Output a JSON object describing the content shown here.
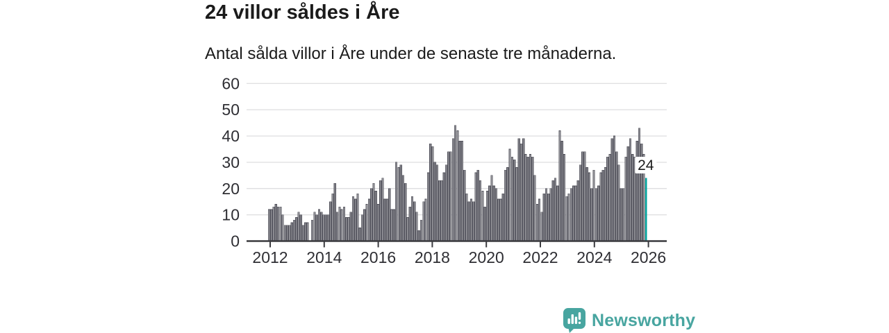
{
  "header": {
    "title": "24 villor såldes i Åre",
    "subtitle": "Antal sålda villor i Åre under de senaste tre månaderna."
  },
  "chart_data": {
    "type": "bar",
    "title": "24 villor såldes i Åre",
    "subtitle": "Antal sålda villor i Åre under de senaste tre månaderna.",
    "x_start_year": 2012,
    "x_interval": "monthly",
    "values": [
      12,
      12,
      13,
      14,
      13,
      13,
      10,
      6,
      6,
      6,
      7,
      8,
      9,
      11,
      10,
      6,
      7,
      7,
      0,
      8,
      11,
      10,
      12,
      11,
      10,
      10,
      10,
      15,
      18,
      22,
      11,
      13,
      12,
      13,
      9,
      9,
      11,
      17,
      16,
      18,
      5,
      10,
      12,
      14,
      16,
      20,
      22,
      19,
      14,
      23,
      24,
      16,
      16,
      20,
      12,
      12,
      30,
      28,
      29,
      25,
      22,
      9,
      13,
      17,
      15,
      11,
      4,
      8,
      15,
      16,
      26,
      37,
      36,
      30,
      29,
      23,
      23,
      26,
      29,
      34,
      34,
      39,
      44,
      42,
      38,
      38,
      27,
      18,
      15,
      16,
      15,
      26,
      27,
      23,
      19,
      13,
      19,
      21,
      25,
      21,
      20,
      16,
      16,
      18,
      27,
      28,
      35,
      32,
      31,
      28,
      39,
      37,
      39,
      33,
      32,
      33,
      32,
      25,
      14,
      16,
      11,
      18,
      20,
      18,
      20,
      23,
      24,
      21,
      42,
      38,
      33,
      17,
      18,
      20,
      21,
      21,
      23,
      29,
      34,
      34,
      28,
      26,
      20,
      27,
      20,
      21,
      26,
      27,
      28,
      32,
      33,
      39,
      40,
      34,
      29,
      20,
      20,
      32,
      36,
      39,
      33,
      32,
      38,
      43,
      37,
      33,
      24
    ],
    "highlight_last": {
      "value": 24,
      "label": "24",
      "color": "#00a29c"
    },
    "bar_fill": "#8c8c92",
    "bar_stroke": "#50505a",
    "ylim": [
      0,
      60
    ],
    "y_ticks": [
      "0",
      "10",
      "20",
      "30",
      "40",
      "50",
      "60"
    ],
    "x_tick_labels": [
      "2012",
      "2014",
      "2016",
      "2018",
      "2020",
      "2022",
      "2024",
      "2026"
    ],
    "grid": true,
    "gridline_color": "#e0e0e2",
    "axis_color": "#3a3a3e",
    "tick_label_color": "#2e2e33",
    "legend": "none"
  },
  "footer": {
    "brand": "Newsworthy",
    "brand_color": "#48a5a0"
  }
}
